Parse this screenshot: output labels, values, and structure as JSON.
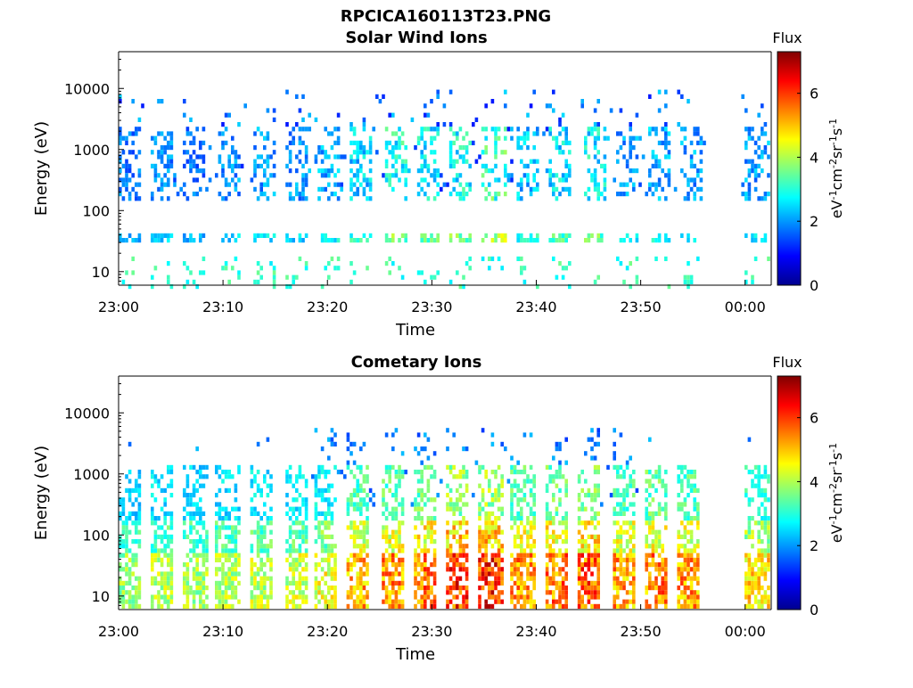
{
  "figure_title": "RPCICA160113T23.PNG",
  "colorbar": {
    "title": "Flux",
    "unit_label": "eV-1cm-2sr-1s-1",
    "ticks": [
      "0",
      "2",
      "4",
      "6"
    ],
    "range": [
      0,
      7.3
    ],
    "colormap": "jet"
  },
  "chart_data": [
    {
      "type": "heatmap",
      "title": "Solar Wind Ions",
      "xlabel": "Time",
      "ylabel": "Energy (eV)",
      "x_ticks": [
        "23:00",
        "23:10",
        "23:20",
        "23:30",
        "23:40",
        "23:50",
        "00:00"
      ],
      "x_tick_minutes": [
        0,
        10,
        20,
        30,
        40,
        50,
        60
      ],
      "xlim_minutes": [
        0,
        62.5
      ],
      "y_ticks": [
        "10",
        "100",
        "1000",
        "10000"
      ],
      "y_tick_values": [
        10,
        100,
        1000,
        10000
      ],
      "ylim": [
        6,
        40000
      ],
      "y_scale": "log",
      "data_gap_minutes": [
        56,
        59.5
      ],
      "bursts": [
        {
          "t": 1.0,
          "flux": 2.6
        },
        {
          "t": 4.0,
          "flux": 2.8
        },
        {
          "t": 7.0,
          "flux": 2.6
        },
        {
          "t": 10.5,
          "flux": 2.9
        },
        {
          "t": 13.8,
          "flux": 3.0
        },
        {
          "t": 17.0,
          "flux": 2.9
        },
        {
          "t": 19.9,
          "flux": 3.2
        },
        {
          "t": 23.0,
          "flux": 3.6
        },
        {
          "t": 26.5,
          "flux": 4.2
        },
        {
          "t": 29.6,
          "flux": 3.9
        },
        {
          "t": 32.6,
          "flux": 4.1
        },
        {
          "t": 35.8,
          "flux": 4.6
        },
        {
          "t": 39.0,
          "flux": 3.4
        },
        {
          "t": 42.2,
          "flux": 3.8
        },
        {
          "t": 45.5,
          "flux": 4.0
        },
        {
          "t": 48.6,
          "flux": 3.0
        },
        {
          "t": 51.6,
          "flux": 3.2
        },
        {
          "t": 54.6,
          "flux": 3.0
        },
        {
          "t": 61.0,
          "flux": 3.0
        }
      ]
    },
    {
      "type": "heatmap",
      "title": "Cometary Ions",
      "xlabel": "Time",
      "ylabel": "Energy (eV)",
      "x_ticks": [
        "23:00",
        "23:10",
        "23:20",
        "23:30",
        "23:40",
        "23:50",
        "00:00"
      ],
      "x_tick_minutes": [
        0,
        10,
        20,
        30,
        40,
        50,
        60
      ],
      "xlim_minutes": [
        0,
        62.5
      ],
      "y_ticks": [
        "10",
        "100",
        "1000",
        "10000"
      ],
      "y_tick_values": [
        10,
        100,
        1000,
        10000
      ],
      "ylim": [
        6,
        40000
      ],
      "y_scale": "log",
      "data_gap_minutes": [
        56,
        59.5
      ],
      "bursts": [
        {
          "t": 1.0,
          "flux": 4.0
        },
        {
          "t": 4.1,
          "flux": 4.2
        },
        {
          "t": 7.2,
          "flux": 4.1
        },
        {
          "t": 10.3,
          "flux": 4.2
        },
        {
          "t": 13.5,
          "flux": 4.3
        },
        {
          "t": 16.8,
          "flux": 4.4
        },
        {
          "t": 19.8,
          "flux": 4.6
        },
        {
          "t": 22.8,
          "flux": 5.4
        },
        {
          "t": 26.0,
          "flux": 5.6
        },
        {
          "t": 29.3,
          "flux": 5.8
        },
        {
          "t": 32.4,
          "flux": 6.3
        },
        {
          "t": 35.5,
          "flux": 6.4
        },
        {
          "t": 38.6,
          "flux": 5.6
        },
        {
          "t": 41.8,
          "flux": 5.8
        },
        {
          "t": 45.0,
          "flux": 6.0
        },
        {
          "t": 48.2,
          "flux": 5.5
        },
        {
          "t": 51.3,
          "flux": 5.7
        },
        {
          "t": 54.3,
          "flux": 5.5
        },
        {
          "t": 61.0,
          "flux": 5.0
        }
      ]
    }
  ]
}
